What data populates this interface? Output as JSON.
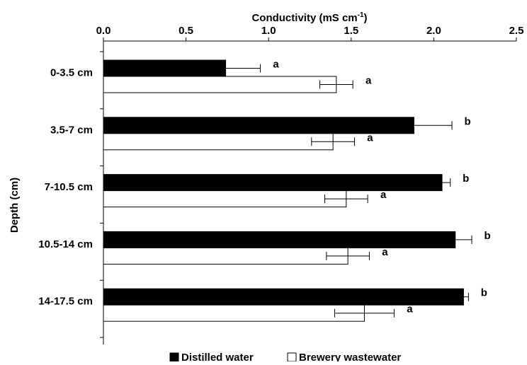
{
  "chart_data": {
    "type": "bar",
    "orientation": "horizontal",
    "title": "",
    "xlabel": "Conductivity (mS cm",
    "xlabel_superscript": "-1",
    "xlabel_close": ")",
    "ylabel": "Depth (cm)",
    "xlim": [
      0,
      2.5
    ],
    "x_ticks": [
      "0.0",
      "0.5",
      "1.0",
      "1.5",
      "2.0",
      "2.5"
    ],
    "x_axis_position": "top",
    "categories": [
      "0-3.5 cm",
      "3.5-7 cm",
      "7-10.5 cm",
      "10.5-14 cm",
      "14-17.5 cm"
    ],
    "series": [
      {
        "name": "Distilled water",
        "color": "#000000",
        "values": [
          0.74,
          1.88,
          2.05,
          2.13,
          2.18
        ],
        "errors": [
          0.21,
          0.23,
          0.05,
          0.1,
          0.03
        ],
        "labels": [
          "a",
          "b",
          "b",
          "b",
          "b"
        ]
      },
      {
        "name": "Brewery wastewater",
        "color": "#ffffff",
        "values": [
          1.41,
          1.39,
          1.47,
          1.48,
          1.58
        ],
        "errors": [
          0.1,
          0.13,
          0.13,
          0.13,
          0.18
        ],
        "labels": [
          "a",
          "a",
          "a",
          "a",
          "a"
        ]
      }
    ],
    "legend_position": "bottom",
    "grid": false
  }
}
